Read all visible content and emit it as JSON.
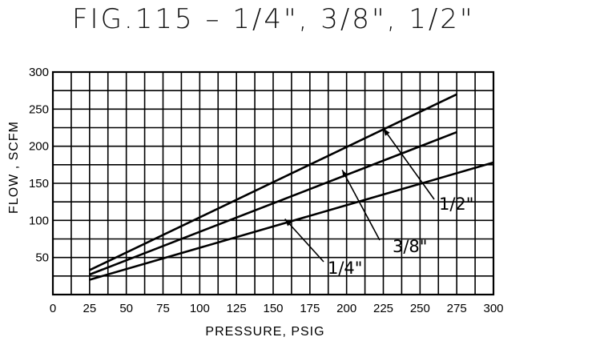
{
  "title": "FIG.115 – 1/4\", 3/8\", 1/2\"",
  "chart_data": {
    "type": "line",
    "title": "FIG.115 – 1/4\", 3/8\", 1/2\"",
    "xlabel": "PRESSURE, PSIG",
    "ylabel": "FLOW , SCFM",
    "xlim": [
      0,
      300
    ],
    "ylim": [
      0,
      300
    ],
    "x_ticks": [
      "0",
      "25",
      "50",
      "75",
      "100",
      "125",
      "150",
      "175",
      "200",
      "225",
      "250",
      "275",
      "300"
    ],
    "y_ticks": [
      "50",
      "100",
      "150",
      "200",
      "250",
      "300"
    ],
    "grid": true,
    "series": [
      {
        "name": "1/4\"",
        "x": [
          25,
          300
        ],
        "y": [
          20,
          178
        ]
      },
      {
        "name": "3/8\"",
        "x": [
          25,
          275
        ],
        "y": [
          27,
          219
        ]
      },
      {
        "name": "1/2\"",
        "x": [
          25,
          275
        ],
        "y": [
          33,
          270
        ]
      }
    ],
    "callouts": [
      {
        "label": "1/2\"",
        "series": "1/2\"",
        "point_x": 225,
        "point_y": 224
      },
      {
        "label": "3/8\"",
        "series": "3/8\"",
        "point_x": 197,
        "point_y": 168
      },
      {
        "label": "1/4\"",
        "series": "1/4\"",
        "point_x": 158,
        "point_y": 102
      }
    ],
    "colors": {
      "line": "#000000",
      "grid": "#000000",
      "background": "#ffffff"
    }
  }
}
